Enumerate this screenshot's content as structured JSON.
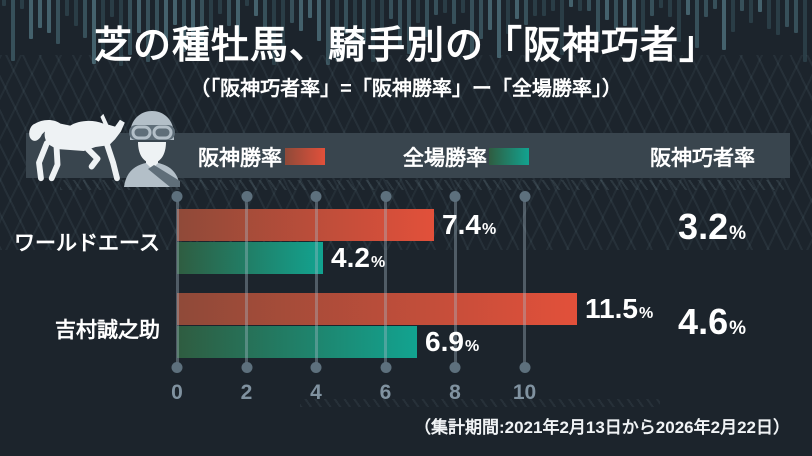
{
  "header": {
    "title": "芝の種牡馬、騎手別の「阪神巧者」",
    "subtitle": "（「阪神巧者率」=「阪神勝率」ー「全場勝率」）"
  },
  "legend": {
    "hanshin_label": "阪神勝率",
    "zenba_label": "全場勝率",
    "kojya_label": "阪神巧者率"
  },
  "icons": {
    "horse": "horse-silhouette",
    "jockey": "jockey-helmet-goggles"
  },
  "footer": {
    "note": "（集計期間:2021年2月13日から2026年2月22日）"
  },
  "colors": {
    "background": "#1c242c",
    "panel": "#39454e",
    "hanshin_start": "#8f4a39",
    "hanshin_end": "#e2503a",
    "zenba_start": "#2f5c40",
    "zenba_end": "#12a390",
    "grid": "#5d707d",
    "axis_text": "#8092a0",
    "equalizer": "#3d5864",
    "text": "#ffffff"
  },
  "chart_data": {
    "type": "bar",
    "orientation": "horizontal",
    "title": "芝の種牡馬、騎手別の「阪神巧者」",
    "categories": [
      "ワールドエース",
      "吉村誠之助"
    ],
    "series": [
      {
        "name": "阪神勝率",
        "values": [
          7.4,
          11.5
        ]
      },
      {
        "name": "全場勝率",
        "values": [
          4.2,
          6.9
        ]
      }
    ],
    "derived": {
      "name": "阪神巧者率",
      "values": [
        3.2,
        4.6
      ]
    },
    "unit": "%",
    "x_ticks": [
      0,
      2,
      4,
      6,
      8,
      10
    ],
    "xlim": [
      0,
      11.8
    ],
    "grid": true,
    "legend_position": "top",
    "rows": [
      {
        "label": "ワールドエース",
        "hanshin_rate": "7.4",
        "zenba_rate": "4.2",
        "kojya_rate": "3.2"
      },
      {
        "label": "吉村誠之助",
        "hanshin_rate": "11.5",
        "zenba_rate": "6.9",
        "kojya_rate": "4.6"
      }
    ]
  }
}
